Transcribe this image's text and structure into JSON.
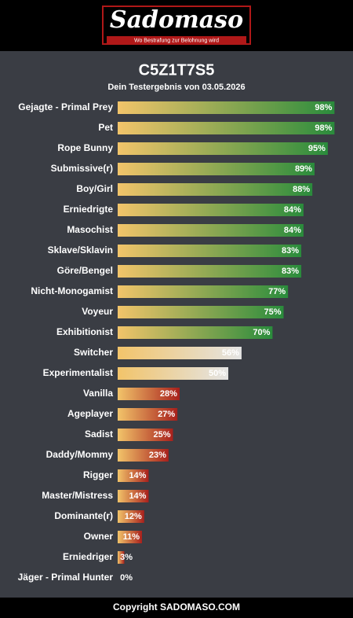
{
  "header": {
    "logo": "Sadomaso",
    "tagline": "Wo Bestrafung zur Belohnung wird"
  },
  "chart_data": {
    "type": "bar",
    "title": "C5Z1T7S5",
    "subtitle": "Dein Testergebnis von 03.05.2026",
    "categories": [
      "Gejagte - Primal Prey",
      "Pet",
      "Rope Bunny",
      "Submissive(r)",
      "Boy/Girl",
      "Erniedrigte",
      "Masochist",
      "Sklave/Sklavin",
      "Göre/Bengel",
      "Nicht-Monogamist",
      "Voyeur",
      "Exhibitionist",
      "Switcher",
      "Experimentalist",
      "Vanilla",
      "Ageplayer",
      "Sadist",
      "Daddy/Mommy",
      "Rigger",
      "Master/Mistress",
      "Dominante(r)",
      "Owner",
      "Erniedriger",
      "Jäger - Primal Hunter"
    ],
    "values": [
      98,
      98,
      95,
      89,
      88,
      84,
      84,
      83,
      83,
      77,
      75,
      70,
      56,
      50,
      28,
      27,
      25,
      23,
      14,
      14,
      12,
      11,
      3,
      0
    ],
    "value_labels": [
      "98%",
      "98%",
      "95%",
      "89%",
      "88%",
      "84%",
      "84%",
      "83%",
      "83%",
      "77%",
      "75%",
      "70%",
      "56%",
      "50%",
      "28%",
      "27%",
      "25%",
      "23%",
      "14%",
      "14%",
      "12%",
      "11%",
      "3%",
      "0%"
    ],
    "xlim": [
      0,
      100
    ]
  },
  "footer": "Copyright SADOMASO.COM"
}
